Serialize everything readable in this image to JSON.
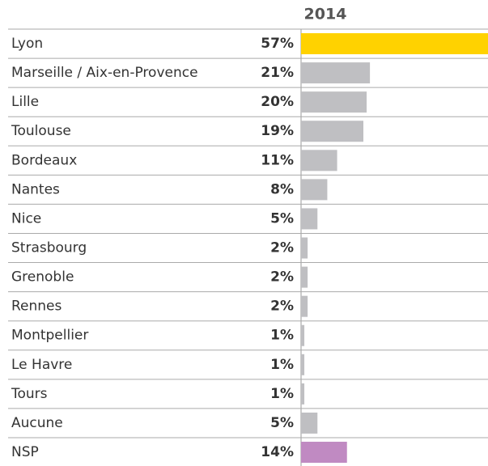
{
  "chart_data": {
    "type": "bar",
    "title": "2014",
    "categories": [
      "Lyon",
      "Marseille / Aix-en-Provence",
      "Lille",
      "Toulouse",
      "Bordeaux",
      "Nantes",
      "Nice",
      "Strasbourg",
      "Grenoble",
      "Rennes",
      "Montpellier",
      "Le Havre",
      "Tours",
      "Aucune",
      "NSP"
    ],
    "values": [
      57,
      21,
      20,
      19,
      11,
      8,
      5,
      2,
      2,
      2,
      1,
      1,
      1,
      5,
      14
    ],
    "value_labels": [
      "57%",
      "21%",
      "20%",
      "19%",
      "11%",
      "8%",
      "5%",
      "2%",
      "2%",
      "2%",
      "1%",
      "1%",
      "1%",
      "5%",
      "14%"
    ],
    "colors": [
      "#ffd200",
      "#bfbfc2",
      "#bfbfc2",
      "#bfbfc2",
      "#bfbfc2",
      "#bfbfc2",
      "#bfbfc2",
      "#bfbfc2",
      "#bfbfc2",
      "#bfbfc2",
      "#bfbfc2",
      "#bfbfc2",
      "#bfbfc2",
      "#bfbfc2",
      "#c08ac2"
    ]
  }
}
